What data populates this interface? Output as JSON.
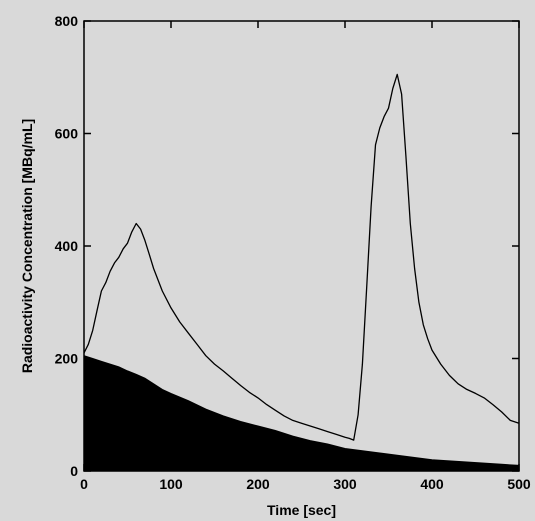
{
  "chart_data": {
    "type": "line",
    "title": "",
    "xlabel": "Time [sec]",
    "ylabel": "Radioactivity Concentration [MBq/mL]",
    "xlim": [
      0,
      500
    ],
    "ylim": [
      0,
      800
    ],
    "x_ticks": [
      0,
      100,
      200,
      300,
      400,
      500
    ],
    "y_ticks": [
      0,
      200,
      400,
      600,
      800
    ],
    "grid": false,
    "legend": "none",
    "series": [
      {
        "style": "line",
        "color": "#000000",
        "x": [
          0,
          5,
          10,
          15,
          20,
          25,
          30,
          35,
          40,
          45,
          50,
          55,
          60,
          65,
          70,
          75,
          80,
          90,
          100,
          110,
          120,
          130,
          140,
          150,
          160,
          170,
          180,
          190,
          200,
          210,
          220,
          230,
          240,
          250,
          260,
          270,
          280,
          290,
          300,
          305,
          310,
          315,
          320,
          325,
          330,
          335,
          340,
          345,
          350,
          355,
          360,
          365,
          370,
          375,
          380,
          385,
          390,
          395,
          400,
          410,
          420,
          430,
          440,
          450,
          460,
          470,
          480,
          490,
          500
        ],
        "y": [
          210,
          225,
          250,
          285,
          320,
          335,
          355,
          370,
          380,
          395,
          405,
          425,
          440,
          430,
          410,
          385,
          360,
          320,
          290,
          265,
          245,
          225,
          205,
          190,
          178,
          165,
          152,
          140,
          130,
          118,
          108,
          98,
          90,
          85,
          80,
          75,
          70,
          65,
          60,
          58,
          55,
          100,
          190,
          330,
          470,
          580,
          610,
          630,
          645,
          680,
          705,
          670,
          560,
          440,
          360,
          300,
          260,
          235,
          215,
          190,
          170,
          155,
          145,
          138,
          130,
          118,
          105,
          90,
          85
        ]
      },
      {
        "style": "filled-area",
        "color": "#000000",
        "x": [
          0,
          10,
          20,
          30,
          40,
          50,
          60,
          70,
          80,
          90,
          100,
          120,
          140,
          160,
          180,
          200,
          220,
          240,
          260,
          280,
          300,
          320,
          340,
          360,
          380,
          400,
          420,
          440,
          460,
          480,
          500
        ],
        "y": [
          205,
          200,
          195,
          190,
          185,
          178,
          172,
          165,
          155,
          145,
          138,
          125,
          110,
          98,
          88,
          80,
          72,
          62,
          54,
          48,
          40,
          36,
          32,
          28,
          24,
          20,
          18,
          16,
          14,
          12,
          10
        ]
      }
    ]
  }
}
